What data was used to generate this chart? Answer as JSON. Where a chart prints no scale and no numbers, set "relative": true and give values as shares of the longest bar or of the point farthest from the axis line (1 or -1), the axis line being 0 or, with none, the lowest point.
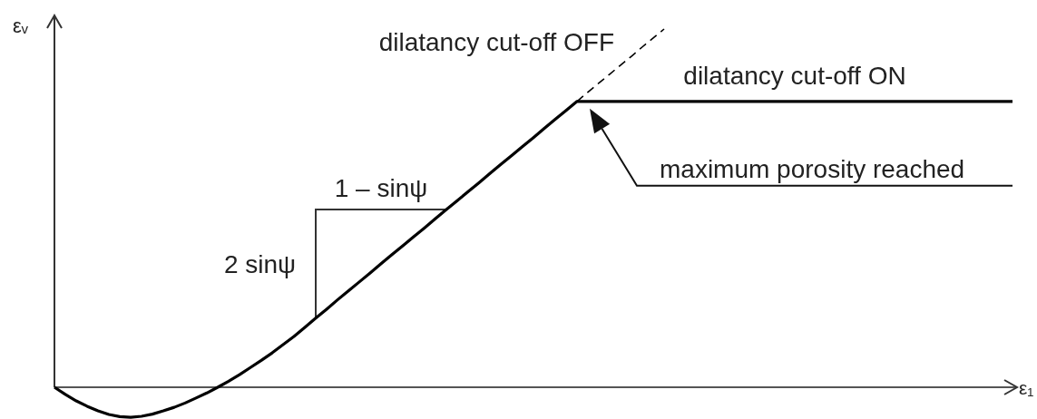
{
  "chart_data": {
    "type": "line",
    "relative": true,
    "xlabel": "ε₁",
    "ylabel": "εᵥ",
    "categories": [
      null,
      null,
      null,
      null,
      null,
      null,
      null,
      null,
      null,
      null,
      null,
      null,
      null,
      null,
      null,
      null,
      null,
      null,
      null,
      null,
      null,
      null,
      null,
      null,
      null,
      null,
      null,
      null,
      null,
      null,
      null,
      null,
      null,
      null,
      null,
      null,
      null,
      null,
      null,
      null,
      null,
      null,
      null,
      null,
      null,
      null,
      null,
      null,
      null,
      null,
      null,
      null,
      null,
      null,
      null,
      null,
      null,
      null,
      null,
      null,
      null,
      null,
      null,
      null,
      null,
      null,
      null,
      null,
      null,
      null,
      null,
      null,
      null,
      null,
      null,
      null,
      null,
      null,
      null,
      null,
      null,
      null,
      null,
      null,
      null,
      null,
      null,
      null,
      null
    ],
    "series": [
      {
        "name": "dilatancy cut-off ON",
        "color": "#000000",
        "line_style": "solid",
        "values": [
          0,
          -0.02,
          -0.038,
          -0.053,
          -0.066,
          -0.076,
          -0.082,
          -0.084,
          -0.081,
          -0.075,
          -0.066,
          -0.056,
          -0.044,
          -0.03,
          -0.016,
          0,
          0.017,
          0.035,
          0.055,
          0.075,
          0.096,
          0.119,
          0.142,
          0.167,
          0.193,
          0.218,
          0.244,
          0.269,
          0.294,
          0.319,
          0.345,
          0.37,
          0.395,
          0.42,
          0.445,
          0.471,
          0.496,
          0.521,
          0.546,
          0.571,
          0.597,
          0.622,
          0.647,
          0.672,
          0.697,
          0.723,
          0.748,
          0.773,
          0.798,
          0.798,
          0.798,
          0.798,
          0.798,
          0.798,
          0.798,
          0.798,
          0.798,
          0.798,
          0.798,
          0.798,
          0.798,
          0.798,
          0.798,
          0.798,
          0.798,
          0.798,
          0.798,
          0.798,
          0.798,
          0.798,
          0.798,
          0.798,
          0.798,
          0.798,
          0.798,
          0.798,
          0.798,
          0.798,
          0.798,
          0.798,
          0.798,
          0.798,
          0.798,
          0.798,
          0.798,
          0.798,
          0.798,
          0.798,
          0.798
        ]
      },
      {
        "name": "dilatancy cut-off OFF",
        "color": "#000000",
        "line_style": "dashed",
        "values": [
          null,
          null,
          null,
          null,
          null,
          null,
          null,
          null,
          null,
          null,
          null,
          null,
          null,
          null,
          null,
          null,
          null,
          null,
          null,
          null,
          null,
          null,
          null,
          null,
          null,
          null,
          null,
          null,
          null,
          null,
          null,
          null,
          null,
          null,
          null,
          null,
          null,
          null,
          null,
          null,
          null,
          null,
          null,
          null,
          null,
          null,
          null,
          null,
          0.798,
          0.824,
          0.849,
          0.874,
          0.899,
          0.924,
          0.95,
          0.975,
          1.0,
          null,
          null,
          null,
          null,
          null,
          null,
          null,
          null,
          null,
          null,
          null,
          null,
          null,
          null,
          null,
          null,
          null,
          null,
          null,
          null,
          null,
          null,
          null,
          null,
          null,
          null,
          null,
          null,
          null,
          null,
          null,
          null
        ]
      }
    ],
    "annotations": [
      "1 – sinψ",
      "2 sinψ",
      {
        "text": "maximum porosity reached",
        "y": 0.798
      }
    ]
  }
}
